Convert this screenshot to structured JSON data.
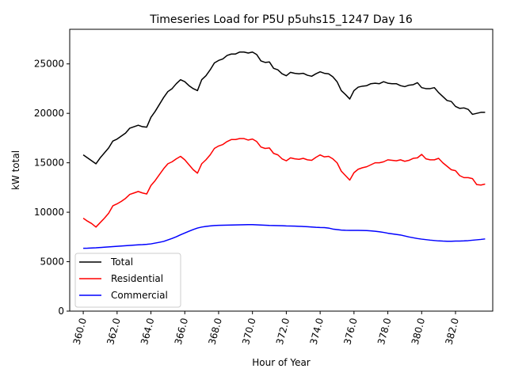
{
  "chart_data": {
    "type": "line",
    "title": "Timeseries Load for P5U p5uhs15_1247  Day 16",
    "xlabel": "Hour of Year",
    "ylabel": "kW total",
    "xlim": [
      359.2,
      384.2
    ],
    "ylim": [
      0,
      28500
    ],
    "xticks": [
      360,
      362,
      364,
      366,
      368,
      370,
      372,
      374,
      376,
      378,
      380,
      382
    ],
    "xtick_labels": [
      "360.0",
      "362.0",
      "364.0",
      "366.0",
      "368.0",
      "370.0",
      "372.0",
      "374.0",
      "376.0",
      "378.0",
      "380.0",
      "382.0"
    ],
    "yticks": [
      0,
      5000,
      10000,
      15000,
      20000,
      25000
    ],
    "ytick_labels": [
      "0",
      "5000",
      "10000",
      "15000",
      "20000",
      "25000"
    ],
    "grid": false,
    "legend_position": "lower-left",
    "series": [
      {
        "name": "Total",
        "color": "#000000",
        "x": [
          360.0,
          360.25,
          360.5,
          360.75,
          361.0,
          361.25,
          361.5,
          361.75,
          362.0,
          362.25,
          362.5,
          362.75,
          363.0,
          363.25,
          363.5,
          363.75,
          364.0,
          364.25,
          364.5,
          364.75,
          365.0,
          365.25,
          365.5,
          365.75,
          366.0,
          366.25,
          366.5,
          366.75,
          367.0,
          367.25,
          367.5,
          367.75,
          368.0,
          368.25,
          368.5,
          368.75,
          369.0,
          369.25,
          369.5,
          369.75,
          370.0,
          370.25,
          370.5,
          370.75,
          371.0,
          371.25,
          371.5,
          371.75,
          372.0,
          372.25,
          372.5,
          372.75,
          373.0,
          373.25,
          373.5,
          373.75,
          374.0,
          374.25,
          374.5,
          374.75,
          375.0,
          375.25,
          375.5,
          375.75,
          376.0,
          376.25,
          376.5,
          376.75,
          377.0,
          377.25,
          377.5,
          377.75,
          378.0,
          378.25,
          378.5,
          378.75,
          379.0,
          379.25,
          379.5,
          379.75,
          380.0,
          380.25,
          380.5,
          380.75,
          381.0,
          381.25,
          381.5,
          381.75,
          382.0,
          382.25,
          382.5,
          382.75,
          383.0,
          383.25,
          383.5,
          383.75
        ],
        "values": [
          15800,
          15500,
          15200,
          14900,
          15500,
          16000,
          16500,
          17200,
          17400,
          17700,
          18000,
          18500,
          18650,
          18800,
          18650,
          18600,
          19600,
          20200,
          20900,
          21600,
          22200,
          22500,
          23000,
          23400,
          23200,
          22800,
          22500,
          22300,
          23400,
          23800,
          24400,
          25100,
          25350,
          25500,
          25850,
          26000,
          26000,
          26200,
          26200,
          26100,
          26200,
          25950,
          25300,
          25150,
          25200,
          24550,
          24400,
          24000,
          23800,
          24150,
          24050,
          24000,
          24050,
          23850,
          23750,
          24000,
          24200,
          24050,
          24000,
          23700,
          23200,
          22300,
          21900,
          21450,
          22300,
          22650,
          22750,
          22800,
          23000,
          23050,
          23000,
          23200,
          23050,
          23000,
          23000,
          22800,
          22700,
          22850,
          22900,
          23100,
          22600,
          22500,
          22500,
          22600,
          22100,
          21700,
          21300,
          21200,
          20700,
          20500,
          20550,
          20400,
          19900,
          20000,
          20100,
          20100
        ]
      },
      {
        "name": "Residential",
        "color": "#ff0000",
        "x": [
          360.0,
          360.25,
          360.5,
          360.75,
          361.0,
          361.25,
          361.5,
          361.75,
          362.0,
          362.25,
          362.5,
          362.75,
          363.0,
          363.25,
          363.5,
          363.75,
          364.0,
          364.25,
          364.5,
          364.75,
          365.0,
          365.25,
          365.5,
          365.75,
          366.0,
          366.25,
          366.5,
          366.75,
          367.0,
          367.25,
          367.5,
          367.75,
          368.0,
          368.25,
          368.5,
          368.75,
          369.0,
          369.25,
          369.5,
          369.75,
          370.0,
          370.25,
          370.5,
          370.75,
          371.0,
          371.25,
          371.5,
          371.75,
          372.0,
          372.25,
          372.5,
          372.75,
          373.0,
          373.25,
          373.5,
          373.75,
          374.0,
          374.25,
          374.5,
          374.75,
          375.0,
          375.25,
          375.5,
          375.75,
          376.0,
          376.25,
          376.5,
          376.75,
          377.0,
          377.25,
          377.5,
          377.75,
          378.0,
          378.25,
          378.5,
          378.75,
          379.0,
          379.25,
          379.5,
          379.75,
          380.0,
          380.25,
          380.5,
          380.75,
          381.0,
          381.25,
          381.5,
          381.75,
          382.0,
          382.25,
          382.5,
          382.75,
          383.0,
          383.25,
          383.5,
          383.75
        ],
        "values": [
          9400,
          9100,
          8850,
          8500,
          8950,
          9400,
          9900,
          10650,
          10850,
          11100,
          11400,
          11800,
          11950,
          12100,
          11950,
          11850,
          12700,
          13200,
          13800,
          14400,
          14900,
          15100,
          15400,
          15650,
          15300,
          14800,
          14300,
          13950,
          14900,
          15300,
          15800,
          16450,
          16700,
          16850,
          17150,
          17350,
          17350,
          17450,
          17450,
          17300,
          17400,
          17150,
          16600,
          16450,
          16500,
          15950,
          15800,
          15400,
          15200,
          15500,
          15400,
          15350,
          15450,
          15300,
          15250,
          15550,
          15800,
          15600,
          15650,
          15400,
          15000,
          14150,
          13700,
          13250,
          14000,
          14350,
          14500,
          14600,
          14800,
          15000,
          15000,
          15100,
          15300,
          15250,
          15200,
          15300,
          15150,
          15250,
          15450,
          15500,
          15850,
          15400,
          15300,
          15300,
          15450,
          15000,
          14650,
          14300,
          14200,
          13700,
          13500,
          13500,
          13400,
          12800,
          12750,
          12850
        ]
      },
      {
        "name": "Commercial",
        "color": "#0000ff",
        "x": [
          360.0,
          360.25,
          360.5,
          360.75,
          361.0,
          361.25,
          361.5,
          361.75,
          362.0,
          362.25,
          362.5,
          362.75,
          363.0,
          363.25,
          363.5,
          363.75,
          364.0,
          364.25,
          364.5,
          364.75,
          365.0,
          365.25,
          365.5,
          365.75,
          366.0,
          366.25,
          366.5,
          366.75,
          367.0,
          367.25,
          367.5,
          367.75,
          368.0,
          368.25,
          368.5,
          368.75,
          369.0,
          369.25,
          369.5,
          369.75,
          370.0,
          370.25,
          370.5,
          370.75,
          371.0,
          371.25,
          371.5,
          371.75,
          372.0,
          372.25,
          372.5,
          372.75,
          373.0,
          373.25,
          373.5,
          373.75,
          374.0,
          374.25,
          374.5,
          374.75,
          375.0,
          375.25,
          375.5,
          375.75,
          376.0,
          376.25,
          376.5,
          376.75,
          377.0,
          377.25,
          377.5,
          377.75,
          378.0,
          378.25,
          378.5,
          378.75,
          379.0,
          379.25,
          379.5,
          379.75,
          380.0,
          380.25,
          380.5,
          380.75,
          381.0,
          381.25,
          381.5,
          381.75,
          382.0,
          382.25,
          382.5,
          382.75,
          383.0,
          383.25,
          383.5,
          383.75
        ],
        "values": [
          6350,
          6360,
          6380,
          6400,
          6430,
          6460,
          6490,
          6520,
          6550,
          6580,
          6610,
          6640,
          6670,
          6700,
          6720,
          6750,
          6800,
          6880,
          6960,
          7050,
          7200,
          7350,
          7520,
          7720,
          7900,
          8080,
          8250,
          8400,
          8500,
          8570,
          8620,
          8660,
          8680,
          8690,
          8700,
          8710,
          8720,
          8730,
          8740,
          8750,
          8750,
          8730,
          8710,
          8690,
          8670,
          8660,
          8650,
          8640,
          8620,
          8610,
          8600,
          8580,
          8560,
          8540,
          8510,
          8480,
          8460,
          8450,
          8400,
          8300,
          8250,
          8200,
          8180,
          8170,
          8170,
          8170,
          8160,
          8150,
          8120,
          8080,
          8030,
          7960,
          7880,
          7820,
          7760,
          7700,
          7600,
          7500,
          7420,
          7340,
          7280,
          7230,
          7180,
          7140,
          7100,
          7080,
          7070,
          7070,
          7080,
          7090,
          7100,
          7130,
          7170,
          7210,
          7250,
          7300
        ]
      }
    ]
  }
}
